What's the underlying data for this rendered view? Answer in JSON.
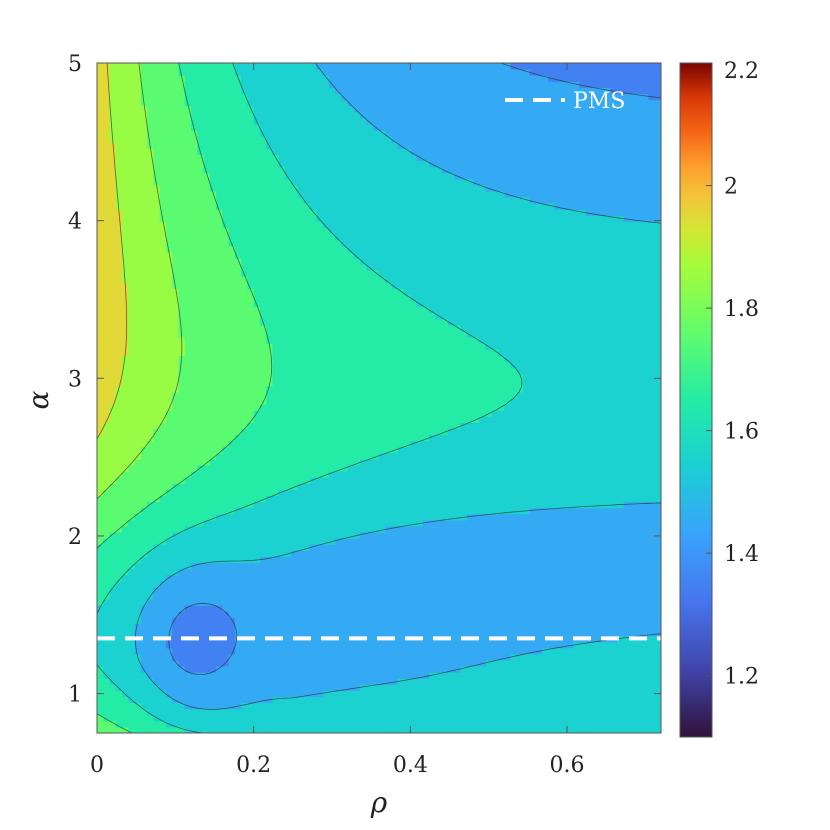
{
  "chart_data": {
    "type": "contour",
    "xlabel": "ρ",
    "ylabel": "α",
    "xlim": [
      0,
      0.72
    ],
    "ylim": [
      0.75,
      5
    ],
    "x_ticks": [
      0,
      0.2,
      0.4,
      0.6
    ],
    "x_tick_labels": [
      "0",
      "0.2",
      "0.4",
      "0.6"
    ],
    "y_ticks": [
      1,
      2,
      3,
      4,
      5
    ],
    "y_tick_labels": [
      "1",
      "2",
      "3",
      "4",
      "5"
    ],
    "colorbar": {
      "range": [
        1.1,
        2.2
      ],
      "ticks": [
        1.2,
        1.4,
        1.6,
        1.8,
        2.0,
        2.2
      ],
      "tick_labels": [
        "1.2",
        "1.4",
        "1.6",
        "1.8",
        "2",
        "2.2"
      ],
      "colormap": "turbo"
    },
    "contour_levels": [
      1.1,
      1.2,
      1.3,
      1.4,
      1.5,
      1.6,
      1.7,
      1.8,
      1.9,
      2.0,
      2.1,
      2.2
    ],
    "pms_line": {
      "name": "PMS",
      "alpha": 1.35,
      "color": "#ffffff",
      "style": "dashed"
    },
    "legend": {
      "entries": [
        "PMS"
      ],
      "placement": "top-right"
    }
  }
}
